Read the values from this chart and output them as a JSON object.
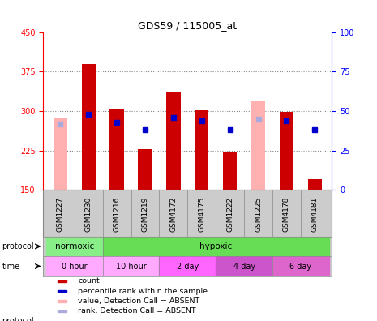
{
  "title": "GDS59 / 115005_at",
  "samples": [
    "GSM1227",
    "GSM1230",
    "GSM1216",
    "GSM1219",
    "GSM4172",
    "GSM4175",
    "GSM1222",
    "GSM1225",
    "GSM4178",
    "GSM4181"
  ],
  "red_bar_values": [
    0,
    390,
    305,
    228,
    335,
    302,
    223,
    0,
    298,
    170
  ],
  "pink_bar_values": [
    287,
    0,
    0,
    0,
    0,
    0,
    0,
    318,
    0,
    0
  ],
  "blue_dot_percent": [
    42,
    48,
    43,
    38,
    46,
    44,
    38,
    0,
    44,
    38
  ],
  "light_blue_dot_percent": [
    42,
    0,
    0,
    0,
    0,
    0,
    0,
    45,
    0,
    0
  ],
  "ylim_left": [
    150,
    450
  ],
  "ylim_right": [
    0,
    100
  ],
  "yticks_left": [
    150,
    225,
    300,
    375,
    450
  ],
  "yticks_right": [
    0,
    25,
    50,
    75,
    100
  ],
  "bg_color": "#ffffff",
  "bar_width": 0.5,
  "red_color": "#cc0000",
  "pink_color": "#ffb0b0",
  "blue_color": "#0000cc",
  "light_blue_color": "#aaaadd",
  "tick_bg_color": "#cccccc",
  "protocol_norm_color": "#88ee88",
  "protocol_hyp_color": "#66dd55",
  "time_colors": [
    "#ffaaff",
    "#ffaaff",
    "#ff66ff",
    "#cc55cc",
    "#dd66cc"
  ],
  "legend_items": [
    {
      "label": "count",
      "color": "#cc0000"
    },
    {
      "label": "percentile rank within the sample",
      "color": "#0000cc"
    },
    {
      "label": "value, Detection Call = ABSENT",
      "color": "#ffb0b0"
    },
    {
      "label": "rank, Detection Call = ABSENT",
      "color": "#aaaadd"
    }
  ]
}
